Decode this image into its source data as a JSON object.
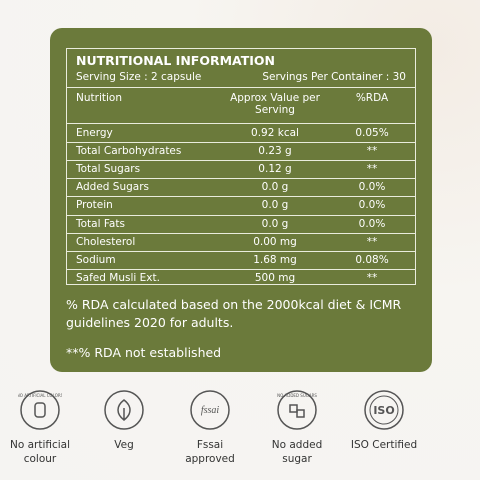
{
  "header": {
    "title": "NUTRITIONAL INFORMATION",
    "serving_size": "Serving Size : 2 capsule",
    "servings_per_container": "Servings Per Container : 30"
  },
  "table": {
    "columns": [
      "Nutrition",
      "Approx Value per Serving",
      "%RDA"
    ],
    "rows": [
      [
        "Energy",
        "0.92 kcal",
        "0.05%"
      ],
      [
        "Total Carbohydrates",
        "0.23 g",
        "**"
      ],
      [
        "Total Sugars",
        "0.12 g",
        "**"
      ],
      [
        "Added Sugars",
        "0.0 g",
        "0.0%"
      ],
      [
        "Protein",
        "0.0 g",
        "0.0%"
      ],
      [
        "Total Fats",
        "0.0 g",
        "0.0%"
      ],
      [
        "Cholesterol",
        "0.00 mg",
        "**"
      ],
      [
        "Sodium",
        "1.68 mg",
        "0.08%"
      ],
      [
        "Safed Musli Ext.",
        "500 mg",
        "**"
      ]
    ]
  },
  "notes": [
    "% RDA calculated based on the 2000kcal diet & ICMR guidelines 2020 for adults.",
    "**% RDA not established"
  ],
  "badges": [
    {
      "icon_text": "NO ARTIFICIAL COLORS",
      "label": "No artificial colour"
    },
    {
      "label": "Veg"
    },
    {
      "icon_text": "fssai",
      "label": "Fssai approved"
    },
    {
      "icon_text": "NO ADDED SUGARS",
      "label": "No added sugar"
    },
    {
      "icon_text": "ISO",
      "label": "ISO Certified"
    }
  ]
}
